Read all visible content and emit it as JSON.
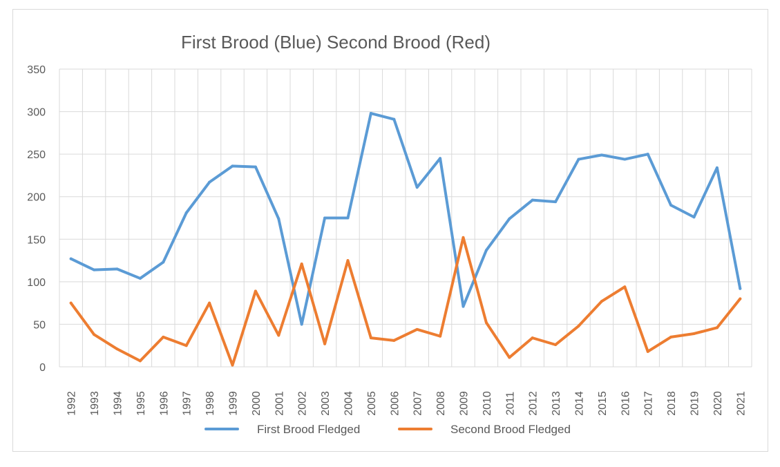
{
  "chart_data": {
    "type": "line",
    "title": "First Brood (Blue) Second Brood (Red)",
    "xlabel": "",
    "ylabel": "",
    "ylim": [
      0,
      350
    ],
    "yticks": [
      0,
      50,
      100,
      150,
      200,
      250,
      300,
      350
    ],
    "grid": true,
    "legend_position": "bottom",
    "categories": [
      "1992",
      "1993",
      "1994",
      "1995",
      "1996",
      "1997",
      "1998",
      "1999",
      "2000",
      "2001",
      "2002",
      "2003",
      "2004",
      "2005",
      "2006",
      "2007",
      "2008",
      "2009",
      "2010",
      "2011",
      "2012",
      "2013",
      "2014",
      "2015",
      "2016",
      "2017",
      "2018",
      "2019",
      "2020",
      "2021"
    ],
    "series": [
      {
        "name": "First Brood Fledged",
        "color": "#5b9bd5",
        "values": [
          127,
          114,
          115,
          104,
          123,
          181,
          217,
          236,
          235,
          174,
          50,
          175,
          175,
          298,
          291,
          211,
          245,
          71,
          137,
          174,
          196,
          194,
          244,
          249,
          244,
          250,
          190,
          176,
          234,
          92
        ]
      },
      {
        "name": "Second Brood Fledged",
        "color": "#ed7d31",
        "values": [
          75,
          38,
          21,
          7,
          35,
          25,
          75,
          2,
          89,
          37,
          121,
          27,
          125,
          34,
          31,
          44,
          36,
          152,
          52,
          11,
          34,
          26,
          48,
          77,
          94,
          18,
          35,
          39,
          46,
          80
        ]
      }
    ]
  }
}
